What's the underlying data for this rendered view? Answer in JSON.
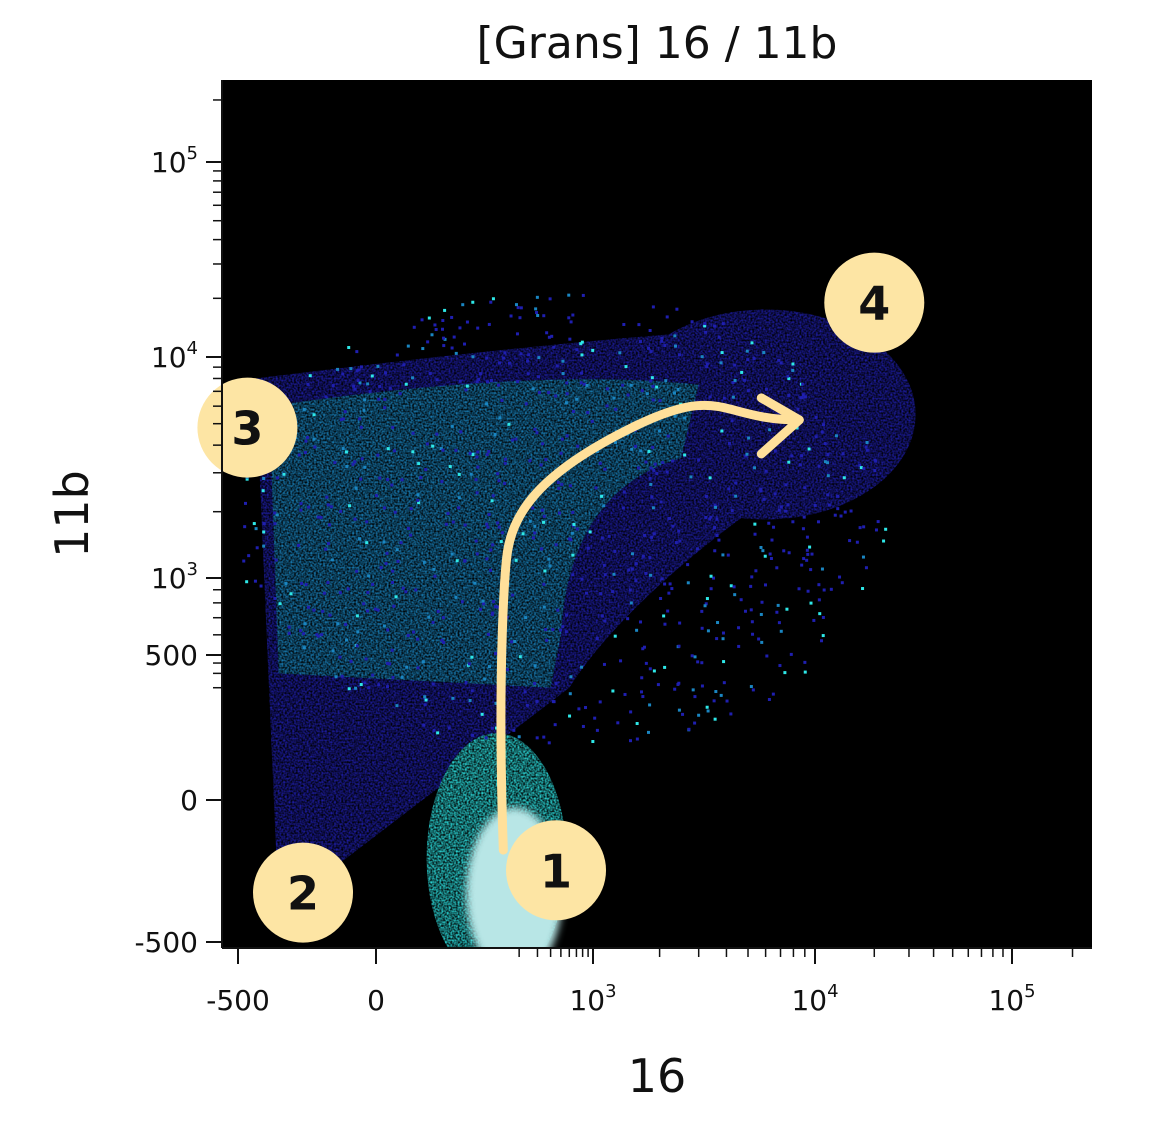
{
  "chart_data": {
    "type": "heatmap",
    "subtype": "flow-cytometry-density-plot",
    "title": "[Grans] 16 / 11b",
    "xlabel": "16",
    "ylabel": "11b",
    "x_scale": "biexponential",
    "y_scale": "biexponential",
    "xlim": [
      -550,
      250000
    ],
    "ylim": [
      -520,
      250000
    ],
    "x_ticks": [
      {
        "value": -500,
        "label": "-500",
        "base": "",
        "exp": ""
      },
      {
        "value": 0,
        "label": "0",
        "base": "",
        "exp": ""
      },
      {
        "value": 1000,
        "label": "",
        "base": "10",
        "exp": "3"
      },
      {
        "value": 10000,
        "label": "",
        "base": "10",
        "exp": "4"
      },
      {
        "value": 100000,
        "label": "",
        "base": "10",
        "exp": "5"
      }
    ],
    "y_ticks": [
      {
        "value": -500,
        "label": "-500",
        "base": "",
        "exp": ""
      },
      {
        "value": 0,
        "label": "0",
        "base": "",
        "exp": ""
      },
      {
        "value": 500,
        "label": "500",
        "base": "",
        "exp": ""
      },
      {
        "value": 1000,
        "label": "",
        "base": "10",
        "exp": "3"
      },
      {
        "value": 10000,
        "label": "",
        "base": "10",
        "exp": "4"
      },
      {
        "value": 100000,
        "label": "",
        "base": "10",
        "exp": "5"
      }
    ],
    "background_color": "#000000",
    "density_colors": {
      "low": "#1f1fb0",
      "mid": "#1a86c2",
      "high": "#2ee8e8",
      "highest": "#b8e6e6"
    },
    "populations": [
      {
        "id": "1",
        "x_center": 180,
        "y_center": -120,
        "color": "#b8e6e6"
      },
      {
        "id": "2",
        "x_center": 40,
        "y_center": -80,
        "color": "#2ee8e8"
      },
      {
        "id": "3",
        "x_center": 150,
        "y_center": 2500,
        "color": "#1a86c2"
      },
      {
        "id": "4",
        "x_center": 9000,
        "y_center": 6500,
        "color": "#1f1fb0"
      }
    ],
    "trajectory": {
      "color": "#ffe09a",
      "points": [
        {
          "x": 140,
          "y": -30
        },
        {
          "x": 120,
          "y": 500
        },
        {
          "x": 150,
          "y": 1200
        },
        {
          "x": 320,
          "y": 3000
        },
        {
          "x": 1500,
          "y": 4800
        },
        {
          "x": 8500,
          "y": 5200
        }
      ]
    },
    "markers": [
      {
        "label": "1",
        "x": 450,
        "y": -60
      },
      {
        "label": "2",
        "x": -70,
        "y": -120
      },
      {
        "label": "3",
        "x": -380,
        "y": 4800
      },
      {
        "label": "4",
        "x": 20000,
        "y": 19000
      }
    ],
    "marker_color": "#fde5a4",
    "grid": false,
    "legend": "none"
  }
}
